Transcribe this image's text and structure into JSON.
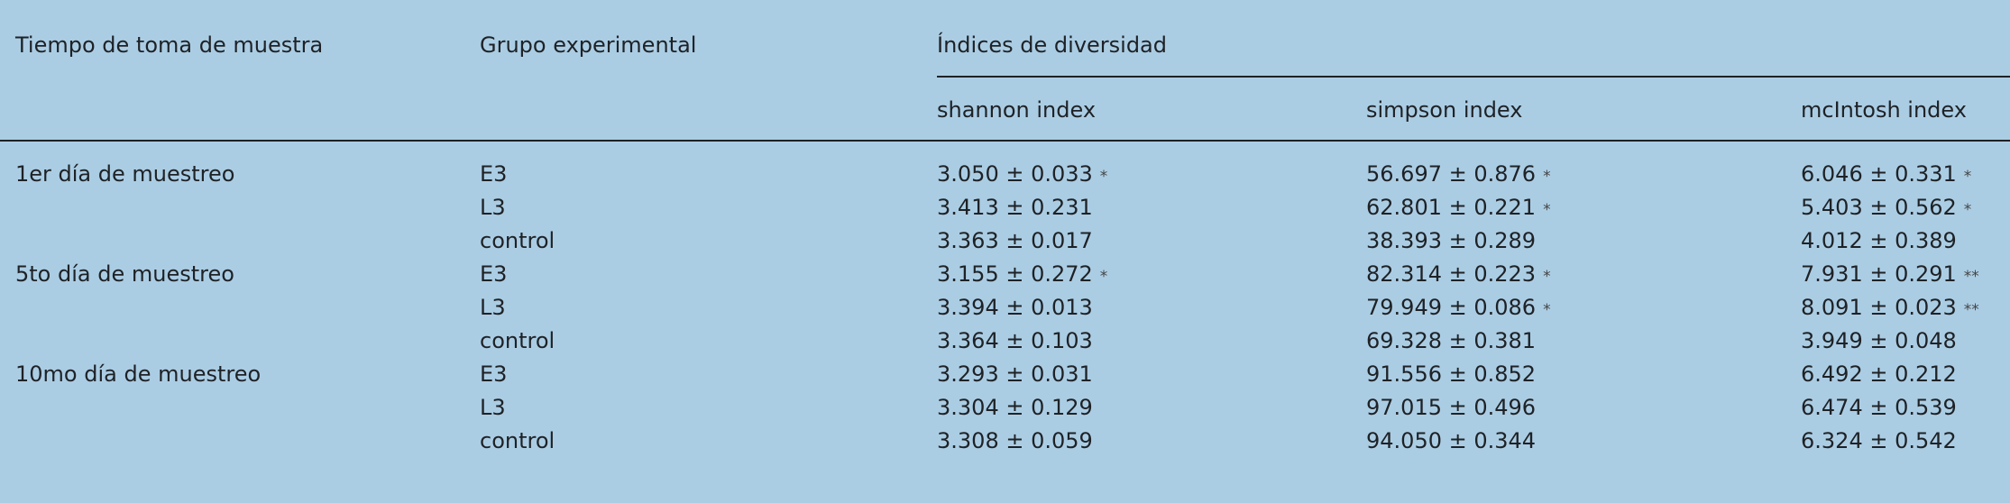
{
  "header": {
    "time": "Tiempo de toma de muestra",
    "group": "Grupo experimental",
    "indices_title": "Índices de diversidad",
    "indices": [
      "shannon index",
      "simpson index",
      "mcIntosh index"
    ]
  },
  "blocks": [
    {
      "time": "1er día de muestreo",
      "rows": [
        {
          "group": "E3",
          "cells": [
            {
              "text": "3.050 ± 0.033",
              "sig": "*"
            },
            {
              "text": "56.697 ± 0.876",
              "sig": "*"
            },
            {
              "text": "6.046 ± 0.331",
              "sig": "*"
            }
          ]
        },
        {
          "group": "L3",
          "cells": [
            {
              "text": "3.413 ± 0.231"
            },
            {
              "text": "62.801 ± 0.221",
              "sig": "*"
            },
            {
              "text": "5.403 ± 0.562",
              "sig": "*"
            }
          ]
        },
        {
          "group": "control",
          "cells": [
            {
              "text": "3.363 ± 0.017"
            },
            {
              "text": "38.393 ± 0.289"
            },
            {
              "text": "4.012 ± 0.389"
            }
          ]
        }
      ]
    },
    {
      "time": "5to día de muestreo",
      "rows": [
        {
          "group": "E3",
          "cells": [
            {
              "text": "3.155 ± 0.272",
              "sig": "*"
            },
            {
              "text": "82.314 ± 0.223",
              "sig": "*"
            },
            {
              "text": "7.931 ± 0.291",
              "sig": "**"
            }
          ]
        },
        {
          "group": "L3",
          "cells": [
            {
              "text": "3.394 ± 0.013"
            },
            {
              "text": "79.949 ± 0.086",
              "sig": "*"
            },
            {
              "text": "8.091 ± 0.023",
              "sig": "**"
            }
          ]
        },
        {
          "group": "control",
          "cells": [
            {
              "text": "3.364 ± 0.103"
            },
            {
              "text": "69.328 ± 0.381"
            },
            {
              "text": "3.949 ± 0.048"
            }
          ]
        }
      ]
    },
    {
      "time": "10mo día de muestreo",
      "rows": [
        {
          "group": "E3",
          "cells": [
            {
              "text": "3.293 ± 0.031"
            },
            {
              "text": "91.556 ± 0.852"
            },
            {
              "text": "6.492 ± 0.212"
            }
          ]
        },
        {
          "group": "L3",
          "cells": [
            {
              "text": "3.304 ± 0.129"
            },
            {
              "text": "97.015 ± 0.496"
            },
            {
              "text": "6.474 ± 0.539"
            }
          ]
        },
        {
          "group": "control",
          "cells": [
            {
              "text": "3.308 ± 0.059"
            },
            {
              "text": "94.050 ± 0.344"
            },
            {
              "text": "6.324 ± 0.542"
            }
          ]
        }
      ]
    }
  ]
}
